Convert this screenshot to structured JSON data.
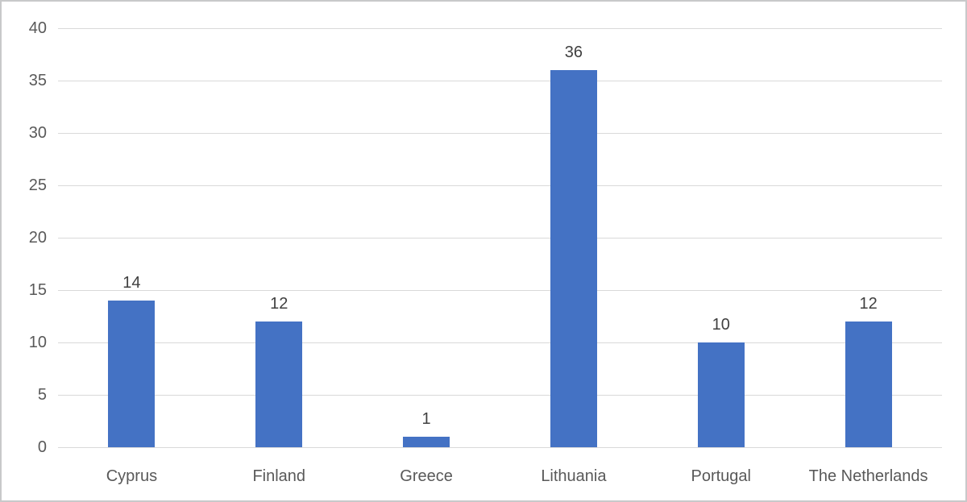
{
  "chart_data": {
    "type": "bar",
    "title": "",
    "xlabel": "",
    "ylabel": "",
    "categories": [
      "Cyprus",
      "Finland",
      "Greece",
      "Lithuania",
      "Portugal",
      "The Netherlands"
    ],
    "values": [
      14,
      12,
      1,
      36,
      10,
      12
    ],
    "data_labels": [
      "14",
      "12",
      "1",
      "36",
      "10",
      "12"
    ],
    "y_ticks": [
      0,
      5,
      10,
      15,
      20,
      25,
      30,
      35,
      40
    ],
    "ylim": [
      0,
      40
    ],
    "grid": "horizontal",
    "legend": "none",
    "bar_color": "#4472c4",
    "gridline_color": "#d9d9d9",
    "axis_text_color": "#595959",
    "data_label_color": "#404040"
  }
}
